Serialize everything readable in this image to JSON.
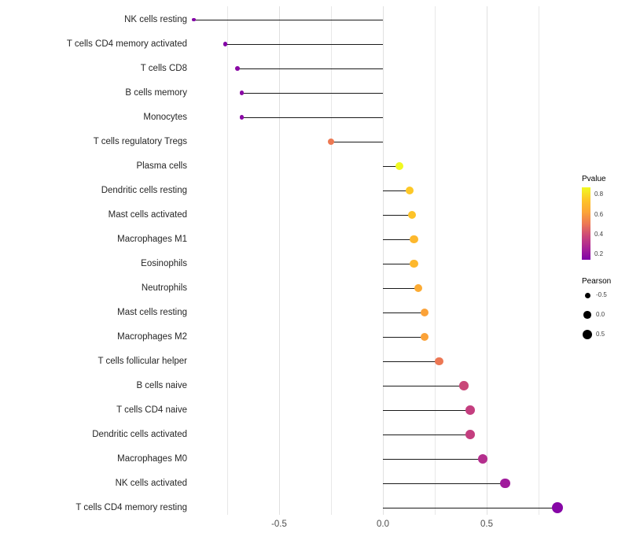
{
  "chart_data": {
    "type": "scatter",
    "subtype": "lollipop",
    "title": "",
    "xlabel": "",
    "ylabel": "",
    "x_ticks": [
      -0.5,
      0,
      0.5
    ],
    "x_tick_labels": [
      "-0.5",
      "0.0",
      "0.5"
    ],
    "x_range": [
      -1.0,
      0.95
    ],
    "grid": "vertical-only",
    "gridline_values": [
      -0.75,
      -0.5,
      -0.25,
      0,
      0.25,
      0.5,
      0.75
    ],
    "stem_color": "#1a1a1a",
    "points": [
      {
        "label": "NK cells resting",
        "pearson": -0.91,
        "pvalue": 0.15,
        "color": "#8405a7"
      },
      {
        "label": "T cells CD4 memory activated",
        "pearson": -0.76,
        "pvalue": 0.15,
        "color": "#8405a7"
      },
      {
        "label": "T cells CD8",
        "pearson": -0.7,
        "pvalue": 0.18,
        "color": "#8a09a5"
      },
      {
        "label": "B cells memory",
        "pearson": -0.68,
        "pvalue": 0.18,
        "color": "#8a09a5"
      },
      {
        "label": "Monocytes",
        "pearson": -0.68,
        "pvalue": 0.18,
        "color": "#8a09a5"
      },
      {
        "label": "T cells regulatory Tregs",
        "pearson": -0.25,
        "pvalue": 0.62,
        "color": "#ed7953"
      },
      {
        "label": "Plasma cells",
        "pearson": 0.08,
        "pvalue": 0.85,
        "color": "#f0f921"
      },
      {
        "label": "Dendritic cells resting",
        "pearson": 0.13,
        "pvalue": 0.8,
        "color": "#fdc827"
      },
      {
        "label": "Mast cells activated",
        "pearson": 0.14,
        "pvalue": 0.79,
        "color": "#fdc329"
      },
      {
        "label": "Macrophages M1",
        "pearson": 0.15,
        "pvalue": 0.77,
        "color": "#fdb82d"
      },
      {
        "label": "Eosinophils",
        "pearson": 0.15,
        "pvalue": 0.77,
        "color": "#fdb82d"
      },
      {
        "label": "Neutrophils",
        "pearson": 0.17,
        "pvalue": 0.74,
        "color": "#fcab33"
      },
      {
        "label": "Mast cells resting",
        "pearson": 0.2,
        "pvalue": 0.71,
        "color": "#fba238"
      },
      {
        "label": "Macrophages M2",
        "pearson": 0.2,
        "pvalue": 0.71,
        "color": "#fba238"
      },
      {
        "label": "T cells follicular helper",
        "pearson": 0.27,
        "pvalue": 0.6,
        "color": "#ec7754"
      },
      {
        "label": "B cells naive",
        "pearson": 0.39,
        "pvalue": 0.45,
        "color": "#c94879"
      },
      {
        "label": "T cells CD4 naive",
        "pearson": 0.42,
        "pvalue": 0.42,
        "color": "#c43e7f"
      },
      {
        "label": "Dendritic cells activated",
        "pearson": 0.42,
        "pvalue": 0.42,
        "color": "#c43e7f"
      },
      {
        "label": "Macrophages M0",
        "pearson": 0.48,
        "pvalue": 0.35,
        "color": "#b42e8d"
      },
      {
        "label": "NK cells activated",
        "pearson": 0.59,
        "pvalue": 0.25,
        "color": "#a01a9c"
      },
      {
        "label": "T cells CD4 memory resting",
        "pearson": 0.84,
        "pvalue": 0.12,
        "color": "#8606a6"
      }
    ]
  },
  "legends": {
    "pvalue": {
      "title": "Pvalue",
      "tick_labels": [
        "0.8",
        "0.6",
        "0.4",
        "0.2"
      ],
      "gradient": [
        "#f0f921",
        "#fdc627",
        "#fca636",
        "#ed7953",
        "#cc4778",
        "#aa2395",
        "#7e03a8"
      ]
    },
    "pearson": {
      "title": "Pearson",
      "items": [
        {
          "label": "-0.5",
          "diameter": 7
        },
        {
          "label": "0.0",
          "diameter": 9.5
        },
        {
          "label": "0.5",
          "diameter": 12
        }
      ]
    }
  }
}
